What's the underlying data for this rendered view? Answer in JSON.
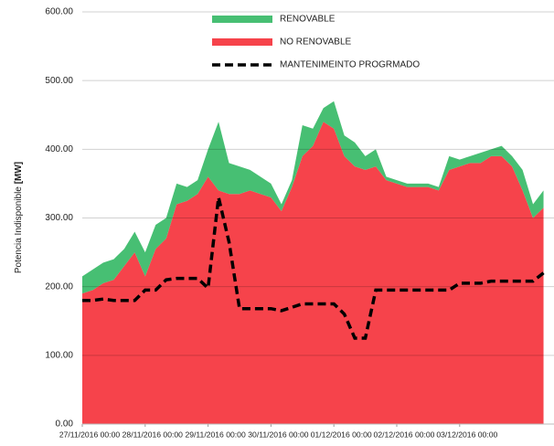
{
  "chart_data": {
    "type": "stacked_area_line",
    "y_label": "Potencia Indisponible ",
    "y_label_unit": "[MW]",
    "x": [
      0,
      4,
      8,
      12,
      16,
      20,
      24,
      28,
      32,
      36,
      40,
      44,
      48,
      52,
      56,
      60,
      64,
      68,
      72,
      76,
      80,
      84,
      88,
      92,
      96,
      100,
      104,
      108,
      112,
      116,
      120,
      124,
      128,
      132,
      136,
      140,
      144,
      148,
      152,
      156,
      160,
      164,
      168,
      172,
      176
    ],
    "xlim": [
      0,
      180
    ],
    "xticks": [
      {
        "value": 0,
        "label": "27/11/2016 00:00"
      },
      {
        "value": 24,
        "label": "28/11/2016 00:00"
      },
      {
        "value": 48,
        "label": "29/11/2016 00:00"
      },
      {
        "value": 72,
        "label": "30/11/2016 00:00"
      },
      {
        "value": 96,
        "label": "01/12/2016 00:00"
      },
      {
        "value": 120,
        "label": "02/12/2016 00:00"
      },
      {
        "value": 144,
        "label": "03/12/2016 00:00"
      }
    ],
    "ylim": [
      0,
      600
    ],
    "yticks": [
      {
        "value": 0,
        "label": "0.00"
      },
      {
        "value": 100,
        "label": "100.00"
      },
      {
        "value": 200,
        "label": "200.00"
      },
      {
        "value": 300,
        "label": "300.00"
      },
      {
        "value": 400,
        "label": "400.00"
      },
      {
        "value": 500,
        "label": "500.00"
      },
      {
        "value": 600,
        "label": "600.00"
      }
    ],
    "grid": true,
    "legend": "top",
    "series": [
      {
        "name": "RENOVABLE",
        "color": "#47bf73",
        "stack": true,
        "values": [
          25,
          30,
          30,
          30,
          25,
          30,
          35,
          35,
          30,
          30,
          20,
          20,
          40,
          100,
          45,
          40,
          30,
          25,
          20,
          10,
          10,
          45,
          25,
          20,
          40,
          30,
          35,
          20,
          25,
          5,
          5,
          5,
          5,
          5,
          5,
          20,
          10,
          10,
          15,
          10,
          15,
          15,
          30,
          20,
          25
        ]
      },
      {
        "name": "NO RENOVABLE",
        "color": "#f6434b",
        "stack": true,
        "values": [
          190,
          195,
          205,
          210,
          230,
          250,
          215,
          255,
          270,
          320,
          325,
          335,
          360,
          340,
          335,
          335,
          340,
          335,
          330,
          310,
          345,
          390,
          405,
          440,
          430,
          390,
          375,
          370,
          375,
          355,
          350,
          345,
          345,
          345,
          340,
          370,
          375,
          380,
          380,
          390,
          390,
          375,
          340,
          300,
          315
        ]
      },
      {
        "name": "MANTENIMEINTO PROGRMADO",
        "color": "#000000",
        "dashed": true,
        "values": [
          180,
          180,
          182,
          180,
          180,
          180,
          195,
          195,
          210,
          212,
          212,
          212,
          198,
          330,
          265,
          168,
          168,
          168,
          168,
          165,
          170,
          175,
          175,
          175,
          175,
          160,
          125,
          125,
          195,
          195,
          195,
          195,
          195,
          195,
          195,
          195,
          205,
          205,
          205,
          208,
          208,
          208,
          208,
          208,
          220
        ]
      }
    ]
  }
}
